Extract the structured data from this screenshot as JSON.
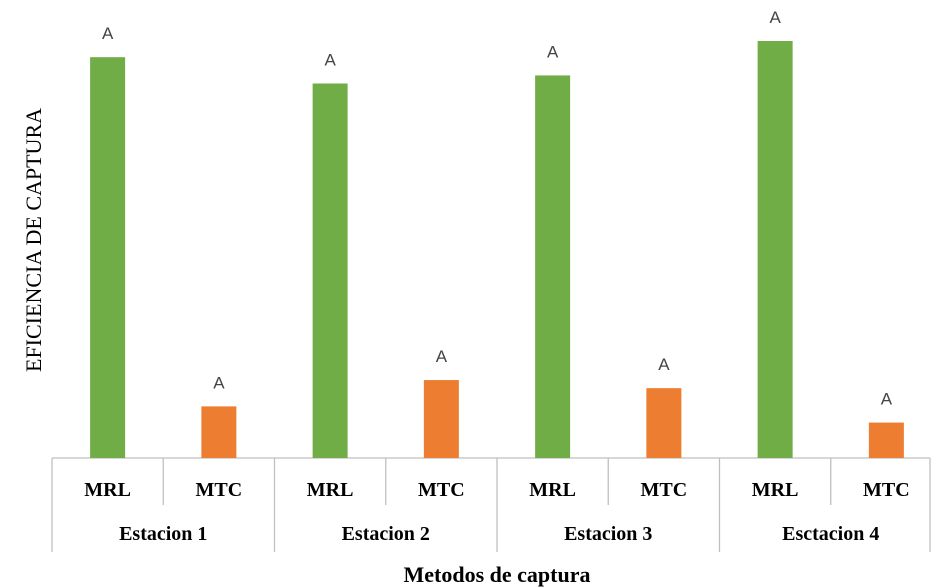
{
  "chart_data": {
    "type": "bar",
    "title": "",
    "xlabel": "Metodos de captura",
    "ylabel": "EFICIENCIA DE CAPTURA",
    "groups": [
      "Estacion 1",
      "Estacion 2",
      "Estacion 3",
      "Esctacion 4"
    ],
    "categories": [
      "MRL",
      "MTC"
    ],
    "bars": [
      {
        "group": "Estacion 1",
        "category": "MRL",
        "value": 396,
        "label": "A",
        "color": "#70AD47"
      },
      {
        "group": "Estacion 1",
        "category": "MTC",
        "value": 51,
        "label": "A",
        "color": "#ED7D31"
      },
      {
        "group": "Estacion 2",
        "category": "MRL",
        "value": 370,
        "label": "A",
        "color": "#70AD47"
      },
      {
        "group": "Estacion 2",
        "category": "MTC",
        "value": 77,
        "label": "A",
        "color": "#ED7D31"
      },
      {
        "group": "Estacion 3",
        "category": "MRL",
        "value": 378,
        "label": "A",
        "color": "#70AD47"
      },
      {
        "group": "Estacion 3",
        "category": "MTC",
        "value": 69,
        "label": "A",
        "color": "#ED7D31"
      },
      {
        "group": "Esctacion 4",
        "category": "MRL",
        "value": 412,
        "label": "A",
        "color": "#70AD47"
      },
      {
        "group": "Esctacion 4",
        "category": "MTC",
        "value": 35,
        "label": "A",
        "color": "#ED7D31"
      }
    ],
    "ylim": [
      0,
      420
    ],
    "grid": false,
    "legend": "none"
  }
}
